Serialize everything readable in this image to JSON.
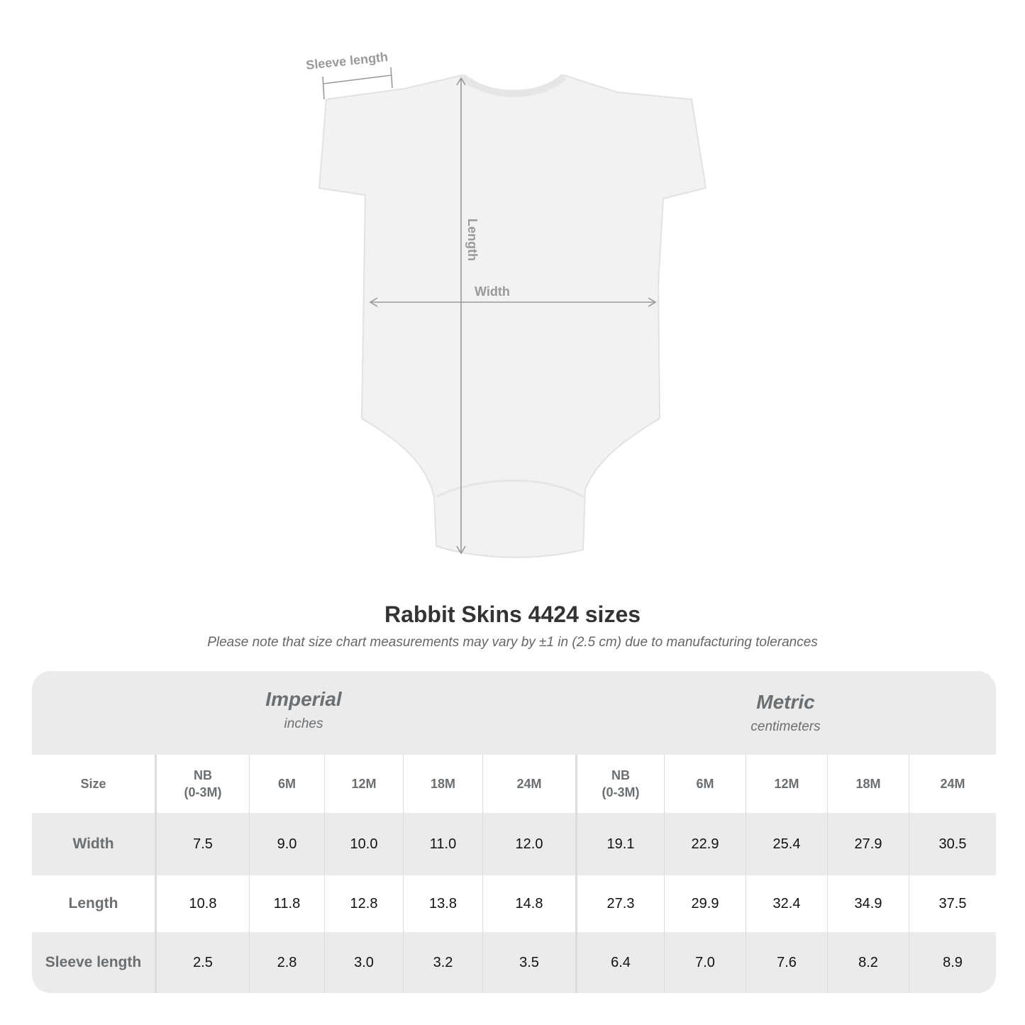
{
  "diagram": {
    "labels": {
      "sleeve": "Sleeve length",
      "length": "Length",
      "width": "Width"
    },
    "garment_color": "#f2f2f2",
    "line_color": "#999999"
  },
  "title": "Rabbit Skins 4424 sizes",
  "note": "Please note that size chart measurements may vary by ±1 in (2.5 cm) due to manufacturing tolerances",
  "table": {
    "systems": [
      {
        "name": "Imperial",
        "unit": "inches"
      },
      {
        "name": "Metric",
        "unit": "centimeters"
      }
    ],
    "size_label": "Size",
    "sizes": [
      "NB\n(0-3M)",
      "6M",
      "12M",
      "18M",
      "24M"
    ],
    "rows": [
      {
        "label": "Width",
        "imperial": [
          "7.5",
          "9.0",
          "10.0",
          "11.0",
          "12.0"
        ],
        "metric": [
          "19.1",
          "22.9",
          "25.4",
          "27.9",
          "30.5"
        ]
      },
      {
        "label": "Length",
        "imperial": [
          "10.8",
          "11.8",
          "12.8",
          "13.8",
          "14.8"
        ],
        "metric": [
          "27.3",
          "29.9",
          "32.4",
          "34.9",
          "37.5"
        ]
      },
      {
        "label": "Sleeve length",
        "imperial": [
          "2.5",
          "2.8",
          "3.0",
          "3.2",
          "3.5"
        ],
        "metric": [
          "6.4",
          "7.0",
          "7.6",
          "8.2",
          "8.9"
        ]
      }
    ],
    "header_bg": "#ebebeb",
    "label_color": "#6b6f72"
  }
}
